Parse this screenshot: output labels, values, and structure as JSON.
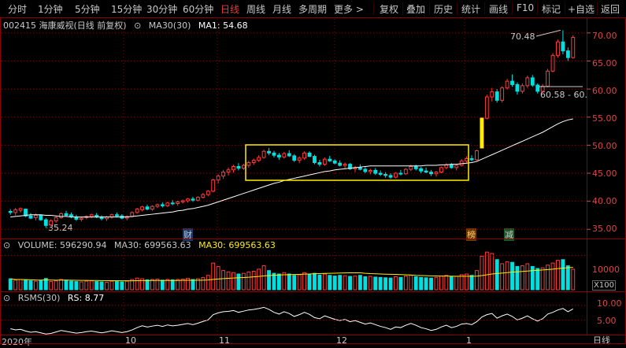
{
  "toolbar": {
    "left_items": [
      {
        "label": "分时"
      },
      {
        "label": "1分钟"
      },
      {
        "label": "5分钟"
      },
      {
        "label": "15分钟"
      },
      {
        "label": "30分钟"
      },
      {
        "label": "60分钟"
      },
      {
        "label": "日线"
      },
      {
        "label": "周线"
      },
      {
        "label": "月线"
      },
      {
        "label": "多周期"
      },
      {
        "label": "更多 >"
      }
    ],
    "right_items": [
      {
        "label": "复权"
      },
      {
        "label": "叠加"
      },
      {
        "label": "历史"
      },
      {
        "label": "统计"
      },
      {
        "label": "画线"
      },
      {
        "label": "F10"
      },
      {
        "label": "标记"
      },
      {
        "label": "+自选"
      },
      {
        "label": "返回"
      }
    ]
  },
  "price_info": {
    "code_title": "002415 海康威视(日线 前复权)",
    "ma30_label": "MA30(30)",
    "ma1_label": "MA1: 54.68"
  },
  "volume_info": {
    "volume_label": "VOLUME: 596290.94",
    "ma30_label": "MA30: 699563.63",
    "ma30_label2": "MA30: 699563.63"
  },
  "rsms_info": {
    "title": "RSMS(30)",
    "rs_label": "RS: 8.77"
  },
  "price_axis": {
    "ticks": [
      "70.00",
      "65.00",
      "60.00",
      "55.00",
      "50.00",
      "45.00",
      "40.00",
      "35.00"
    ],
    "range": [
      33.5,
      72.5
    ]
  },
  "volume_axis": {
    "ticks": [
      "10000"
    ],
    "unit": "X100"
  },
  "rs_axis": {
    "ticks": [
      "10.00",
      "5.00"
    ]
  },
  "annotations": {
    "high": "70.48",
    "low": "35.24",
    "range_label": "60.58 - 60.",
    "event_cai": "财",
    "event_bang": "榜",
    "event_jian": "减"
  },
  "x_axis": {
    "labels": [
      "2020年",
      "10",
      "11",
      "12",
      "1"
    ],
    "period": "日线"
  },
  "colors": {
    "up": "#ff3b3b",
    "down": "#00e0e0",
    "ma": "#ffffff",
    "highlight": "#ffee00",
    "grid": "#8b0000",
    "text": "#c8c8c8"
  },
  "chart_data": {
    "type": "candlestick",
    "candles": [
      [
        38.2,
        38.6,
        37.6,
        38.0
      ],
      [
        38.0,
        38.8,
        37.5,
        38.5
      ],
      [
        38.4,
        38.9,
        38.0,
        38.7
      ],
      [
        38.6,
        38.7,
        37.2,
        37.4
      ],
      [
        37.4,
        37.9,
        36.8,
        37.0
      ],
      [
        37.1,
        37.8,
        36.6,
        37.5
      ],
      [
        37.5,
        37.6,
        36.5,
        36.7
      ],
      [
        36.7,
        37.0,
        35.24,
        35.7
      ],
      [
        35.8,
        36.8,
        35.6,
        36.5
      ],
      [
        36.5,
        37.4,
        36.2,
        37.1
      ],
      [
        37.1,
        38.0,
        36.9,
        37.8
      ],
      [
        37.8,
        38.3,
        37.3,
        37.5
      ],
      [
        37.6,
        38.0,
        37.0,
        37.3
      ],
      [
        37.2,
        37.6,
        36.5,
        36.8
      ],
      [
        36.8,
        37.2,
        36.4,
        37.0
      ],
      [
        37.1,
        37.5,
        36.8,
        37.3
      ],
      [
        37.3,
        37.8,
        37.0,
        37.6
      ],
      [
        37.5,
        37.9,
        37.0,
        37.2
      ],
      [
        37.2,
        37.5,
        36.6,
        36.9
      ],
      [
        36.9,
        37.4,
        36.5,
        37.2
      ],
      [
        37.2,
        37.8,
        36.9,
        37.6
      ],
      [
        37.6,
        38.0,
        37.1,
        37.4
      ],
      [
        37.4,
        37.7,
        36.8,
        37.0
      ],
      [
        37.0,
        37.5,
        36.6,
        37.3
      ],
      [
        37.3,
        38.2,
        37.1,
        38.0
      ],
      [
        38.0,
        38.8,
        37.8,
        38.6
      ],
      [
        38.5,
        39.2,
        38.2,
        39.0
      ],
      [
        39.0,
        39.4,
        38.4,
        38.6
      ],
      [
        38.6,
        39.3,
        38.3,
        39.1
      ],
      [
        39.1,
        39.6,
        38.8,
        39.4
      ],
      [
        39.4,
        39.8,
        38.9,
        39.2
      ],
      [
        39.2,
        39.9,
        39.0,
        39.7
      ],
      [
        39.7,
        40.2,
        39.3,
        39.6
      ],
      [
        39.6,
        40.1,
        39.2,
        39.9
      ],
      [
        39.9,
        40.3,
        39.6,
        40.1
      ],
      [
        40.1,
        40.6,
        39.8,
        40.4
      ],
      [
        40.4,
        40.8,
        39.9,
        40.2
      ],
      [
        40.2,
        40.9,
        40.0,
        40.7
      ],
      [
        40.7,
        41.5,
        40.5,
        41.2
      ],
      [
        41.2,
        42.0,
        40.9,
        41.8
      ],
      [
        41.8,
        44.0,
        41.6,
        43.8
      ],
      [
        43.8,
        44.8,
        43.2,
        44.5
      ],
      [
        44.5,
        45.6,
        44.0,
        45.2
      ],
      [
        45.2,
        46.0,
        44.6,
        45.6
      ],
      [
        45.6,
        46.5,
        45.1,
        46.2
      ],
      [
        46.2,
        46.8,
        45.5,
        45.9
      ],
      [
        45.9,
        46.7,
        45.6,
        46.4
      ],
      [
        46.4,
        47.2,
        46.0,
        46.9
      ],
      [
        46.9,
        47.6,
        46.5,
        47.3
      ],
      [
        47.3,
        48.2,
        47.0,
        47.8
      ],
      [
        47.8,
        49.2,
        47.6,
        48.9
      ],
      [
        48.9,
        49.5,
        48.2,
        48.6
      ],
      [
        48.6,
        49.0,
        47.8,
        48.2
      ],
      [
        48.2,
        48.6,
        47.4,
        47.9
      ],
      [
        47.9,
        48.8,
        47.6,
        48.5
      ],
      [
        48.5,
        49.1,
        47.9,
        48.1
      ],
      [
        48.1,
        48.4,
        47.0,
        47.3
      ],
      [
        47.3,
        48.0,
        46.8,
        47.7
      ],
      [
        47.7,
        48.9,
        47.4,
        48.6
      ],
      [
        48.6,
        48.9,
        47.9,
        48.0
      ],
      [
        48.0,
        48.3,
        46.6,
        46.9
      ],
      [
        46.9,
        47.4,
        46.2,
        46.6
      ],
      [
        46.6,
        47.8,
        46.3,
        47.5
      ],
      [
        47.5,
        48.1,
        47.0,
        47.2
      ],
      [
        47.2,
        47.5,
        46.6,
        46.8
      ],
      [
        46.8,
        47.3,
        46.2,
        46.4
      ],
      [
        46.4,
        46.9,
        45.9,
        46.6
      ],
      [
        46.6,
        46.8,
        45.6,
        45.8
      ],
      [
        45.8,
        46.3,
        45.2,
        46.0
      ],
      [
        46.0,
        46.6,
        45.5,
        45.7
      ],
      [
        45.7,
        46.1,
        45.0,
        45.3
      ],
      [
        45.3,
        45.8,
        44.8,
        45.5
      ],
      [
        45.5,
        45.9,
        44.7,
        45.0
      ],
      [
        45.0,
        45.5,
        44.5,
        44.8
      ],
      [
        44.8,
        45.2,
        44.2,
        44.6
      ],
      [
        44.6,
        45.0,
        44.0,
        44.3
      ],
      [
        44.3,
        45.2,
        44.1,
        45.0
      ],
      [
        45.0,
        45.6,
        44.6,
        44.9
      ],
      [
        44.9,
        45.9,
        44.7,
        45.7
      ],
      [
        45.7,
        46.5,
        45.4,
        46.2
      ],
      [
        46.2,
        46.5,
        45.5,
        45.8
      ],
      [
        45.8,
        46.1,
        45.0,
        45.4
      ],
      [
        45.4,
        46.0,
        45.0,
        45.2
      ],
      [
        45.2,
        45.6,
        44.5,
        44.9
      ],
      [
        44.9,
        45.4,
        44.4,
        45.2
      ],
      [
        45.2,
        46.2,
        45.0,
        46.0
      ],
      [
        46.0,
        46.8,
        45.7,
        46.5
      ],
      [
        46.5,
        46.8,
        45.8,
        46.0
      ],
      [
        46.0,
        46.6,
        45.5,
        46.4
      ],
      [
        46.4,
        47.5,
        46.2,
        47.2
      ],
      [
        47.2,
        48.0,
        46.9,
        47.6
      ],
      [
        47.6,
        48.2,
        47.1,
        47.4
      ],
      [
        47.4,
        49.2,
        47.2,
        49.0
      ],
      [
        49.5,
        55.0,
        49.5,
        54.8
      ],
      [
        54.8,
        59.0,
        54.6,
        58.6
      ],
      [
        58.6,
        60.2,
        57.8,
        59.5
      ],
      [
        59.5,
        60.0,
        57.6,
        58.0
      ],
      [
        58.0,
        60.5,
        57.6,
        60.2
      ],
      [
        60.2,
        61.8,
        59.9,
        61.4
      ],
      [
        61.4,
        62.6,
        60.4,
        60.8
      ],
      [
        60.8,
        61.2,
        59.0,
        59.6
      ],
      [
        59.6,
        61.0,
        59.2,
        60.6
      ],
      [
        60.6,
        62.4,
        60.2,
        62.0
      ],
      [
        62.0,
        62.5,
        60.4,
        60.7
      ],
      [
        60.7,
        61.0,
        59.2,
        59.6
      ],
      [
        59.6,
        60.9,
        59.1,
        60.5
      ],
      [
        60.5,
        63.6,
        60.3,
        63.2
      ],
      [
        63.2,
        66.4,
        63.0,
        66.0
      ],
      [
        66.0,
        68.8,
        65.6,
        68.4
      ],
      [
        68.4,
        70.48,
        66.2,
        66.8
      ],
      [
        66.8,
        67.4,
        65.0,
        65.6
      ],
      [
        65.6,
        69.6,
        65.4,
        69.2
      ]
    ],
    "ma30": [
      37.2,
      37.3,
      37.4,
      37.5,
      37.6,
      37.6,
      37.6,
      37.5,
      37.5,
      37.4,
      37.3,
      37.3,
      37.2,
      37.2,
      37.2,
      37.2,
      37.2,
      37.2,
      37.2,
      37.2,
      37.2,
      37.2,
      37.2,
      37.2,
      37.3,
      37.4,
      37.5,
      37.6,
      37.7,
      37.8,
      37.9,
      38.0,
      38.1,
      38.3,
      38.4,
      38.6,
      38.7,
      38.9,
      39.1,
      39.3,
      39.6,
      39.9,
      40.2,
      40.5,
      40.8,
      41.1,
      41.4,
      41.7,
      42.0,
      42.3,
      42.6,
      42.9,
      43.2,
      43.4,
      43.7,
      43.9,
      44.1,
      44.3,
      44.5,
      44.7,
      44.9,
      45.1,
      45.3,
      45.4,
      45.6,
      45.7,
      45.8,
      45.9,
      46.0,
      46.1,
      46.2,
      46.3,
      46.3,
      46.3,
      46.3,
      46.3,
      46.3,
      46.3,
      46.3,
      46.3,
      46.3,
      46.3,
      46.4,
      46.4,
      46.4,
      46.5,
      46.5,
      46.6,
      46.6,
      46.7,
      46.8,
      46.9,
      47.1,
      47.5,
      47.9,
      48.3,
      48.7,
      49.1,
      49.5,
      49.9,
      50.3,
      50.7,
      51.1,
      51.5,
      51.9,
      52.3,
      52.8,
      53.3,
      53.8,
      54.2,
      54.5,
      54.68
    ],
    "volume": [
      320,
      280,
      300,
      290,
      260,
      250,
      270,
      330,
      240,
      260,
      300,
      280,
      250,
      240,
      230,
      250,
      260,
      240,
      230,
      220,
      250,
      240,
      230,
      250,
      300,
      340,
      320,
      290,
      300,
      310,
      280,
      300,
      290,
      300,
      310,
      330,
      300,
      320,
      360,
      420,
      780,
      680,
      560,
      520,
      500,
      460,
      480,
      520,
      540,
      600,
      700,
      560,
      480,
      460,
      500,
      460,
      420,
      440,
      500,
      450,
      480,
      430,
      460,
      420,
      400,
      420,
      410,
      390,
      400,
      420,
      380,
      390,
      370,
      360,
      350,
      340,
      380,
      360,
      400,
      420,
      380,
      360,
      350,
      340,
      360,
      400,
      420,
      380,
      390,
      440,
      460,
      420,
      560,
      980,
      1100,
      1060,
      880,
      760,
      820,
      800,
      680,
      700,
      760,
      680,
      620,
      640,
      720,
      780,
      860,
      880,
      700,
      600
    ],
    "rs": [
      2.0,
      1.6,
      1.8,
      1.2,
      0.8,
      1.0,
      0.6,
      0.2,
      0.4,
      0.9,
      1.4,
      1.1,
      0.8,
      0.5,
      0.7,
      1.0,
      1.2,
      0.9,
      0.6,
      0.9,
      1.3,
      1.0,
      0.7,
      1.0,
      1.6,
      2.4,
      3.0,
      2.6,
      2.9,
      3.2,
      2.8,
      3.3,
      3.0,
      3.2,
      3.5,
      3.8,
      3.4,
      3.9,
      4.5,
      5.0,
      6.8,
      7.4,
      7.8,
      7.9,
      8.2,
      7.6,
      8.0,
      8.4,
      8.6,
      8.9,
      9.3,
      8.6,
      7.6,
      7.0,
      7.8,
      7.2,
      6.2,
      6.8,
      7.6,
      6.9,
      5.8,
      5.4,
      6.4,
      5.8,
      5.2,
      4.8,
      5.2,
      4.4,
      4.8,
      4.2,
      3.6,
      4.0,
      3.4,
      2.8,
      2.4,
      1.8,
      2.6,
      2.4,
      3.2,
      3.8,
      3.2,
      2.4,
      2.0,
      1.4,
      1.8,
      2.6,
      3.2,
      2.4,
      2.8,
      3.6,
      3.8,
      3.4,
      4.4,
      6.0,
      6.8,
      7.2,
      5.6,
      6.4,
      7.0,
      6.2,
      5.0,
      5.6,
      6.4,
      5.4,
      4.6,
      5.4,
      7.0,
      7.6,
      8.4,
      8.9,
      7.8,
      8.77
    ]
  }
}
